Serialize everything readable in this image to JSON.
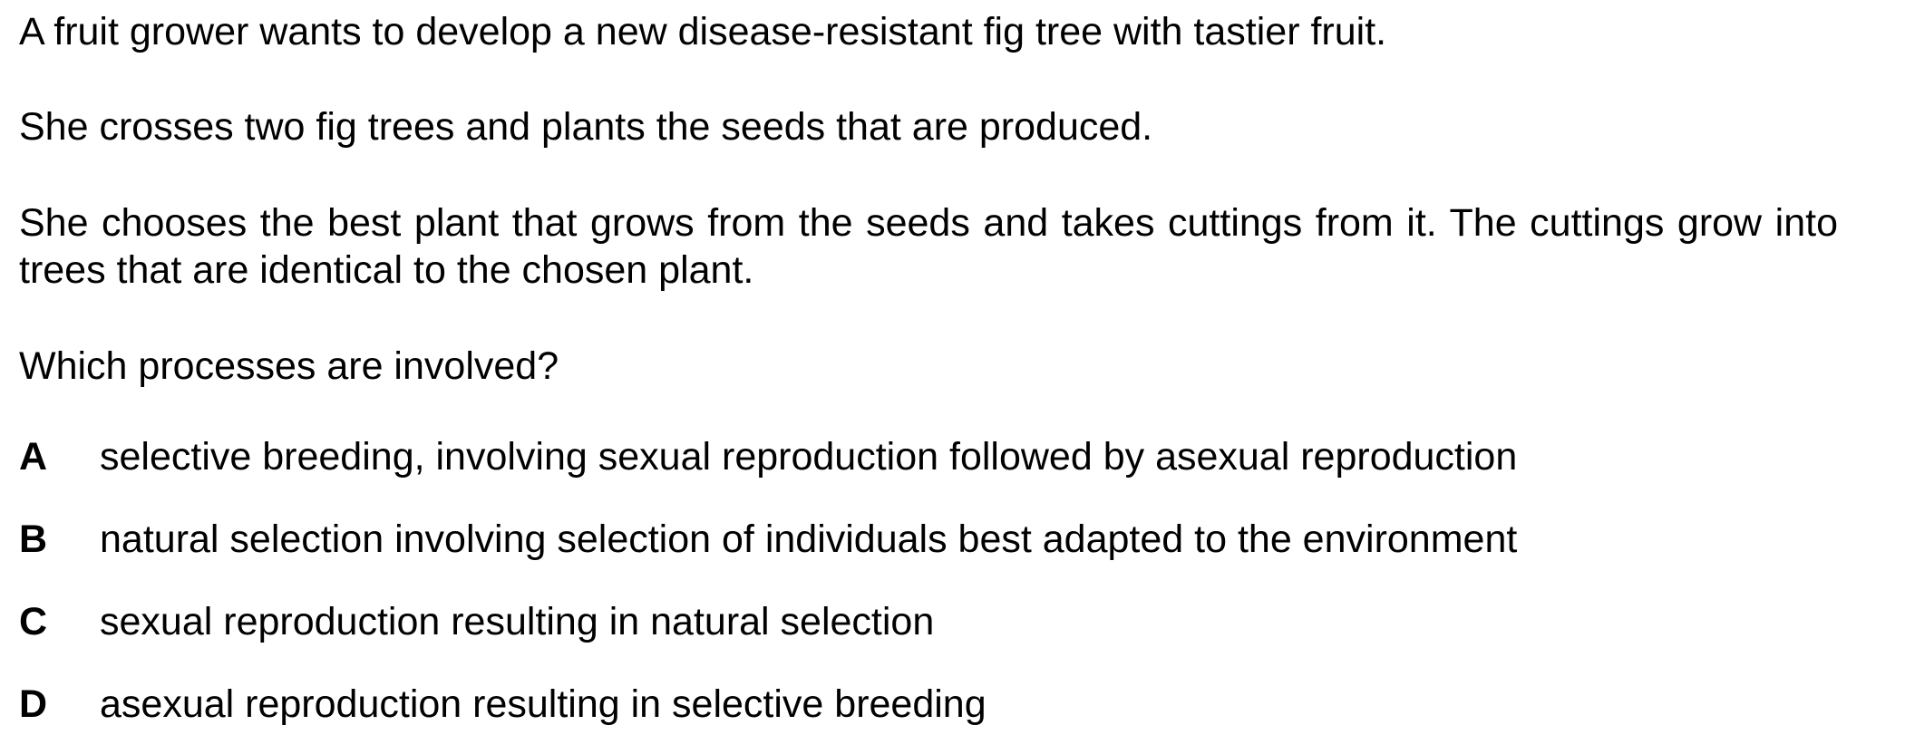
{
  "question": {
    "paragraphs": [
      "A fruit grower wants to develop a new disease-resistant fig tree with tastier fruit.",
      "She crosses two fig trees and plants the seeds that are produced.",
      "She chooses the best plant that grows from the seeds and takes cuttings from it. The cuttings grow into trees that are identical to the chosen plant.",
      "Which processes are involved?"
    ],
    "options": [
      {
        "letter": "A",
        "text": "selective breeding, involving sexual reproduction followed by asexual reproduction"
      },
      {
        "letter": "B",
        "text": "natural selection involving selection of individuals best adapted to the environment"
      },
      {
        "letter": "C",
        "text": "sexual reproduction resulting in natural selection"
      },
      {
        "letter": "D",
        "text": "asexual reproduction resulting in selective breeding"
      }
    ]
  }
}
